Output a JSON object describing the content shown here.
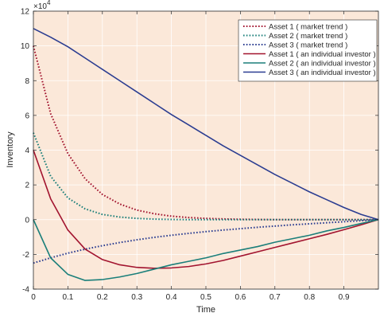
{
  "chart_data": {
    "type": "line",
    "xlabel": "Time",
    "ylabel": "Inventory",
    "y_exponent_label": "×10",
    "y_exponent_power": "4",
    "xlim": [
      0,
      1
    ],
    "ylim": [
      -4,
      12
    ],
    "x_ticks": [
      0,
      0.1,
      0.2,
      0.3,
      0.4,
      0.5,
      0.6,
      0.7,
      0.8,
      0.9
    ],
    "x_tick_labels": [
      "0",
      "0.1",
      "0.2",
      "0.3",
      "0.4",
      "0.5",
      "0.6",
      "0.7",
      "0.8",
      "0.9"
    ],
    "y_ticks": [
      -4,
      -2,
      0,
      2,
      4,
      6,
      8,
      10,
      12
    ],
    "y_tick_labels": [
      "-4",
      "-2",
      "0",
      "2",
      "4",
      "6",
      "8",
      "10",
      "12"
    ],
    "y_units_multiplier": 10000,
    "grid": true,
    "legend_position": "top-right",
    "background_color": "#fbe8d9",
    "x": [
      0,
      0.05,
      0.1,
      0.15,
      0.2,
      0.25,
      0.3,
      0.35,
      0.4,
      0.45,
      0.5,
      0.55,
      0.6,
      0.65,
      0.7,
      0.75,
      0.8,
      0.85,
      0.9,
      0.95,
      1.0
    ],
    "series": [
      {
        "name": "Asset 1 ( market trend )",
        "color": "#a2142f",
        "style": "dotted",
        "values": [
          10.0,
          6.1,
          3.8,
          2.35,
          1.45,
          0.9,
          0.55,
          0.34,
          0.2,
          0.12,
          0.07,
          0.04,
          0.02,
          0.01,
          0.0,
          0.0,
          0.0,
          0.0,
          0.0,
          0.0,
          0.0
        ]
      },
      {
        "name": "Asset 2 ( market trend )",
        "color": "#1b7f7a",
        "style": "dotted",
        "values": [
          5.0,
          2.5,
          1.25,
          0.62,
          0.3,
          0.15,
          0.07,
          0.03,
          0.01,
          0.0,
          0.0,
          0.0,
          0.0,
          0.0,
          0.0,
          0.0,
          0.0,
          0.0,
          0.0,
          0.0,
          0.0
        ]
      },
      {
        "name": "Asset 3 ( market trend )",
        "color": "#2b3d91",
        "style": "dotted",
        "values": [
          -2.5,
          -2.2,
          -1.93,
          -1.7,
          -1.5,
          -1.32,
          -1.16,
          -1.02,
          -0.9,
          -0.79,
          -0.69,
          -0.6,
          -0.52,
          -0.44,
          -0.37,
          -0.3,
          -0.24,
          -0.18,
          -0.12,
          -0.06,
          0.0
        ]
      },
      {
        "name": "Asset 1 ( an individual investor )",
        "color": "#a2142f",
        "style": "solid",
        "values": [
          4.0,
          1.2,
          -0.6,
          -1.7,
          -2.3,
          -2.6,
          -2.75,
          -2.8,
          -2.78,
          -2.7,
          -2.55,
          -2.35,
          -2.1,
          -1.85,
          -1.6,
          -1.35,
          -1.1,
          -0.85,
          -0.58,
          -0.3,
          0.0
        ]
      },
      {
        "name": "Asset 2 ( an individual investor )",
        "color": "#1b7f7a",
        "style": "solid",
        "values": [
          0.0,
          -2.2,
          -3.15,
          -3.5,
          -3.45,
          -3.3,
          -3.1,
          -2.85,
          -2.6,
          -2.4,
          -2.2,
          -1.95,
          -1.75,
          -1.55,
          -1.3,
          -1.1,
          -0.9,
          -0.65,
          -0.45,
          -0.22,
          0.0
        ]
      },
      {
        "name": "Asset 3 ( an individual investor )",
        "color": "#2b3d91",
        "style": "solid",
        "values": [
          11.0,
          10.5,
          9.95,
          9.3,
          8.65,
          8.0,
          7.35,
          6.7,
          6.05,
          5.45,
          4.85,
          4.25,
          3.7,
          3.15,
          2.6,
          2.1,
          1.6,
          1.15,
          0.7,
          0.3,
          0.0
        ]
      }
    ]
  }
}
